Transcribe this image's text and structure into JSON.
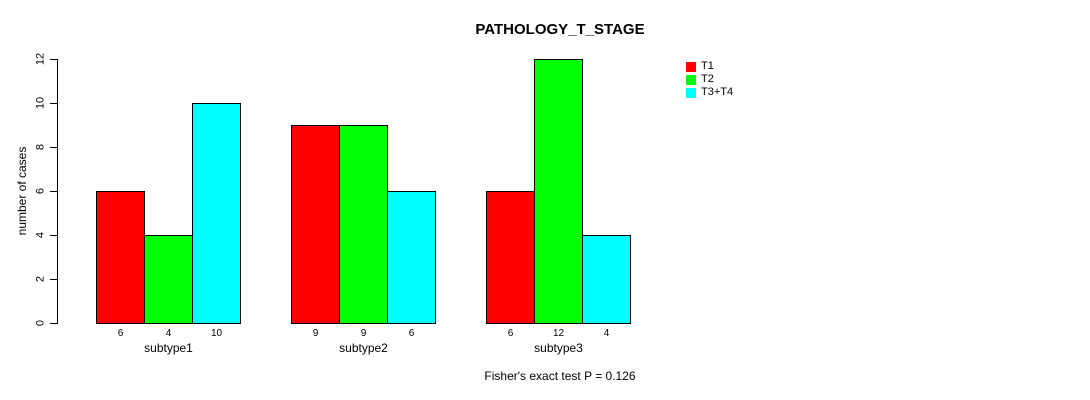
{
  "chart_data": {
    "type": "bar",
    "title": "PATHOLOGY_T_STAGE",
    "ylabel": "number of cases",
    "xlabel": "",
    "categories": [
      "subtype1",
      "subtype2",
      "subtype3"
    ],
    "series": [
      {
        "name": "T1",
        "color": "#ff0000",
        "values": [
          6,
          9,
          6
        ]
      },
      {
        "name": "T2",
        "color": "#00ff00",
        "values": [
          4,
          9,
          12
        ]
      },
      {
        "name": "T3+T4",
        "color": "#00ffff",
        "values": [
          10,
          6,
          4
        ]
      }
    ],
    "ylim": [
      0,
      12
    ],
    "yticks": [
      0,
      2,
      4,
      6,
      8,
      10,
      12
    ],
    "grid": false,
    "legend_position": "top-right",
    "bar_value_labels": true,
    "annotation": "Fisher's exact test P = 0.126"
  }
}
